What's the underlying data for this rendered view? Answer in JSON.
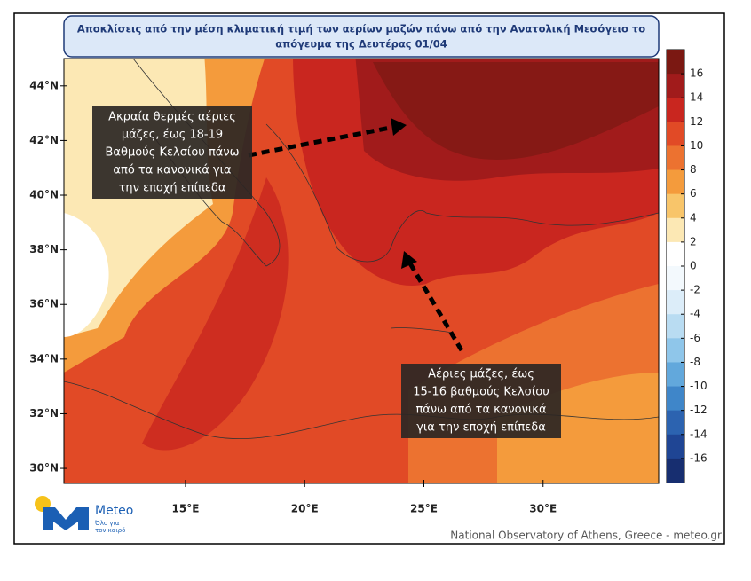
{
  "title": [
    "Αποκλίσεις από την μέση κλιματική τιμή των αερίων μαζών πάνω από την Ανατολική Μεσόγειο το",
    "απόγευμα της Δευτέρας 01/04"
  ],
  "annotations": [
    {
      "lines": [
        "Ακραία θερμές αέριες",
        "μάζες, έως 18-19",
        "Βαθμούς Κελσίου πάνω",
        "από τα κανονικά για",
        "την εποχή επίπεδα"
      ]
    },
    {
      "lines": [
        "Αέριες μάζες, έως",
        "15-16 βαθμούς Κελσίου",
        "πάνω από τα κανονικά",
        "για την εποχή επίπεδα"
      ]
    }
  ],
  "map": {
    "xlim": [
      9.9,
      34.85
    ],
    "ylim": [
      29.45,
      45
    ],
    "yticks": [
      {
        "value": 44,
        "label": "44°N"
      },
      {
        "value": 42,
        "label": "42°N"
      },
      {
        "value": 40,
        "label": "40°N"
      },
      {
        "value": 38,
        "label": "38°N"
      },
      {
        "value": 36,
        "label": "36°N"
      },
      {
        "value": 34,
        "label": "34°N"
      },
      {
        "value": 32,
        "label": "32°N"
      },
      {
        "value": 30,
        "label": "30°N"
      }
    ],
    "xticks": [
      {
        "value": 15,
        "label": "15°E"
      },
      {
        "value": 20,
        "label": "20°E"
      },
      {
        "value": 25,
        "label": "25°E"
      },
      {
        "value": 30,
        "label": "30°E"
      }
    ]
  },
  "colorbar": {
    "lim": [
      -18,
      18
    ],
    "ticks": [
      16,
      14,
      12,
      10,
      8,
      6,
      4,
      2,
      0,
      -2,
      -4,
      -6,
      -8,
      -10,
      -12,
      -14,
      -16
    ],
    "colors": [
      "#7b1812",
      "#a11b1b",
      "#c9261f",
      "#e14a26",
      "#ec7230",
      "#f49b3c",
      "#f8c56a",
      "#fce8b4",
      "#ffffff",
      "#f3f9fd",
      "#dcedf9",
      "#b9dcf2",
      "#8fc6ea",
      "#62a8dc",
      "#3f86c9",
      "#2c63b0",
      "#1f4594",
      "#172e70"
    ]
  },
  "logo": {
    "name": "Meteo",
    "tagline": [
      "Όλο για",
      "τον καιρό"
    ]
  },
  "credit": "National Observatory of Athens, Greece - meteo.gr"
}
